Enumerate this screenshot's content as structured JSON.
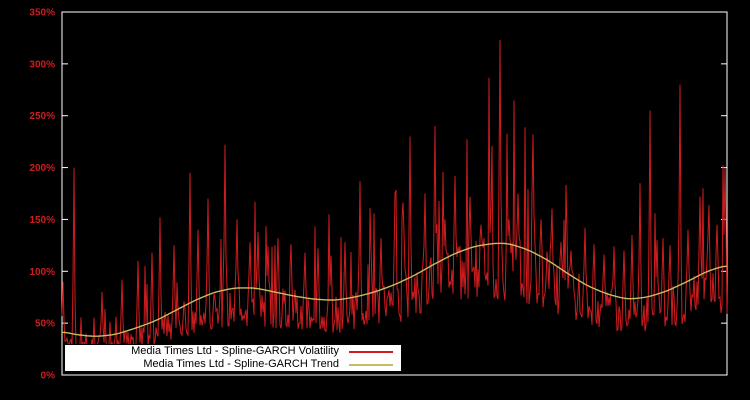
{
  "chart_data": {
    "type": "line",
    "title": "",
    "xlabel": "",
    "ylabel": "",
    "ylim": [
      0,
      350
    ],
    "y_ticks": [
      "0%",
      "50%",
      "100%",
      "150%",
      "200%",
      "250%",
      "300%",
      "350%"
    ],
    "y_tick_values": [
      0,
      50,
      100,
      150,
      200,
      250,
      300,
      350
    ],
    "x_range": [
      0,
      1
    ],
    "grid": false,
    "background": "#000000",
    "frame_color": "#ffffff",
    "tick_label_color": "#cf1c1f",
    "legend": {
      "position": "bottom-left",
      "background": "#ffffff",
      "border": "#000000"
    },
    "series": [
      {
        "name": "Media Times Ltd - Spline-GARCH Volatility",
        "color": "#cf1c1f",
        "style": "noisy",
        "noise": {
          "seed": 1337,
          "points": 666,
          "base_ratio_min": 0.56,
          "base_ratio_max": 1.08,
          "spike_prob": 0.07,
          "spike_gain_min": 1.3,
          "spike_gain_max": 2.3,
          "min_value": 27,
          "max_value": 340
        },
        "spikes": [
          [
            0.001,
            90
          ],
          [
            0.018,
            200
          ],
          [
            0.06,
            80
          ],
          [
            0.09,
            92
          ],
          [
            0.115,
            110
          ],
          [
            0.135,
            118
          ],
          [
            0.148,
            152
          ],
          [
            0.168,
            125
          ],
          [
            0.192,
            195
          ],
          [
            0.205,
            140
          ],
          [
            0.22,
            170
          ],
          [
            0.245,
            222
          ],
          [
            0.263,
            150
          ],
          [
            0.282,
            128
          ],
          [
            0.295,
            138
          ],
          [
            0.31,
            124
          ],
          [
            0.325,
            132
          ],
          [
            0.345,
            126
          ],
          [
            0.365,
            118
          ],
          [
            0.385,
            122
          ],
          [
            0.405,
            115
          ],
          [
            0.425,
            128
          ],
          [
            0.448,
            187
          ],
          [
            0.465,
            122
          ],
          [
            0.48,
            132
          ],
          [
            0.501,
            175
          ],
          [
            0.515,
            138
          ],
          [
            0.523,
            230
          ],
          [
            0.546,
            175
          ],
          [
            0.561,
            240
          ],
          [
            0.576,
            150
          ],
          [
            0.591,
            192
          ],
          [
            0.613,
            172
          ],
          [
            0.63,
            145
          ],
          [
            0.645,
            160
          ],
          [
            0.658,
            323
          ],
          [
            0.672,
            150
          ],
          [
            0.685,
            175
          ],
          [
            0.708,
            232
          ],
          [
            0.72,
            150
          ],
          [
            0.735,
            132
          ],
          [
            0.75,
            128
          ],
          [
            0.765,
            120
          ],
          [
            0.786,
            142
          ],
          [
            0.8,
            126
          ],
          [
            0.815,
            116
          ],
          [
            0.83,
            124
          ],
          [
            0.845,
            120
          ],
          [
            0.857,
            135
          ],
          [
            0.869,
            185
          ],
          [
            0.884,
            255
          ],
          [
            0.895,
            130
          ],
          [
            0.904,
            132
          ],
          [
            0.915,
            125
          ],
          [
            0.929,
            280
          ],
          [
            0.942,
            140
          ],
          [
            0.959,
            172
          ],
          [
            0.972,
            135
          ],
          [
            0.985,
            145
          ],
          [
            0.997,
            200
          ]
        ]
      },
      {
        "name": "Media Times Ltd - Spline-GARCH Trend",
        "color": "#c6bd62",
        "style": "smooth",
        "points": [
          [
            0.0,
            42
          ],
          [
            0.02,
            39
          ],
          [
            0.05,
            37
          ],
          [
            0.08,
            39
          ],
          [
            0.11,
            45
          ],
          [
            0.14,
            52
          ],
          [
            0.17,
            62
          ],
          [
            0.2,
            72
          ],
          [
            0.23,
            80
          ],
          [
            0.26,
            84
          ],
          [
            0.29,
            84
          ],
          [
            0.32,
            80
          ],
          [
            0.35,
            76
          ],
          [
            0.38,
            73
          ],
          [
            0.41,
            72
          ],
          [
            0.44,
            75
          ],
          [
            0.47,
            80
          ],
          [
            0.5,
            87
          ],
          [
            0.53,
            96
          ],
          [
            0.56,
            107
          ],
          [
            0.59,
            117
          ],
          [
            0.62,
            124
          ],
          [
            0.65,
            127
          ],
          [
            0.67,
            127
          ],
          [
            0.7,
            121
          ],
          [
            0.73,
            111
          ],
          [
            0.76,
            98
          ],
          [
            0.79,
            86
          ],
          [
            0.82,
            78
          ],
          [
            0.85,
            73
          ],
          [
            0.88,
            75
          ],
          [
            0.91,
            81
          ],
          [
            0.94,
            90
          ],
          [
            0.97,
            100
          ],
          [
            1.0,
            106
          ]
        ]
      }
    ]
  }
}
